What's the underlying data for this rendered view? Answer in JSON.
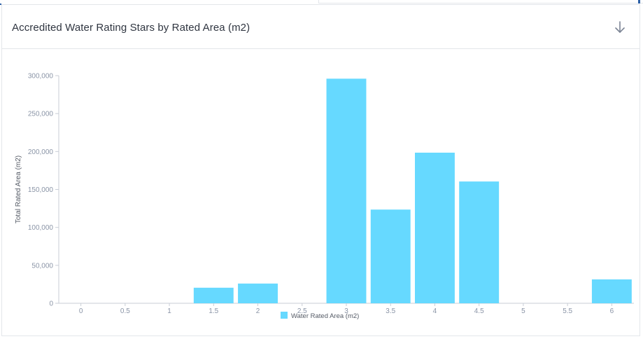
{
  "card": {
    "title": "Accredited Water Rating Stars by Rated Area (m2)",
    "download_icon": "arrow-down-icon"
  },
  "colors": {
    "bar": "#66d9ff",
    "axis": "#c9ced6",
    "tick_text": "#8a94a6",
    "label_text": "#555b66"
  },
  "chart_data": {
    "type": "bar",
    "title": "",
    "xlabel": "",
    "ylabel": "Total Rated Area (m2)",
    "categories": [
      "0",
      "0.5",
      "1",
      "1.5",
      "2",
      "2.5",
      "3",
      "3.5",
      "4",
      "4.5",
      "5",
      "5.5",
      "6"
    ],
    "series": [
      {
        "name": "Water Rated Area (m2)",
        "values": [
          0,
          0,
          0,
          20500,
          26000,
          0,
          296000,
          123500,
          198500,
          160500,
          0,
          0,
          31500
        ]
      }
    ],
    "ylim": [
      0,
      300000
    ],
    "yticks": [
      0,
      50000,
      100000,
      150000,
      200000,
      250000,
      300000
    ],
    "ytick_labels": [
      "0",
      "50,000",
      "100,000",
      "150,000",
      "200,000",
      "250,000",
      "300,000"
    ],
    "grid": false,
    "legend": "bottom-center"
  }
}
